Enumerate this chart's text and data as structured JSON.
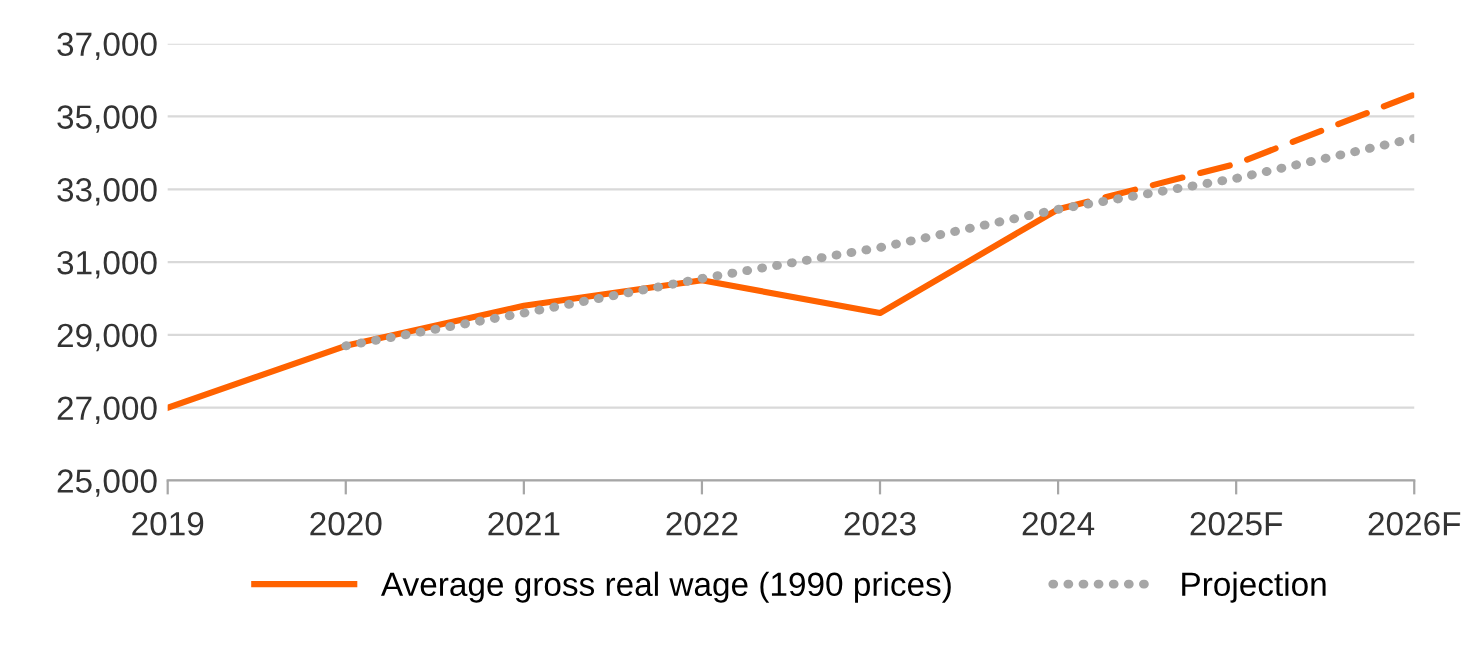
{
  "chart_data": {
    "type": "line",
    "categories": [
      "2019",
      "2020",
      "2021",
      "2022",
      "2023",
      "2024",
      "2025F",
      "2026F"
    ],
    "series": [
      {
        "name": "Average gross real wage (1990 prices)",
        "color": "#ff6200",
        "line_style": "solid",
        "values": [
          27000,
          28700,
          29800,
          30500,
          29600,
          32450,
          null,
          null
        ]
      },
      {
        "color": "#ff6200",
        "line_style": "dashed",
        "values": [
          null,
          null,
          null,
          null,
          null,
          32450,
          33700,
          35600
        ]
      },
      {
        "name": "Projection",
        "color": "#a6a6a6",
        "line_style": "dotted",
        "values": [
          null,
          28700,
          29600,
          30550,
          31400,
          32450,
          33300,
          34400
        ]
      }
    ],
    "ylim": [
      25000,
      37000
    ],
    "yticks": [
      {
        "value": 25000,
        "label": "25,000"
      },
      {
        "value": 27000,
        "label": "27,000"
      },
      {
        "value": 29000,
        "label": "29,000"
      },
      {
        "value": 31000,
        "label": "31,000"
      },
      {
        "value": 33000,
        "label": "33,000"
      },
      {
        "value": 35000,
        "label": "35,000"
      },
      {
        "value": 37000,
        "label": "37,000"
      }
    ],
    "grid": "y",
    "legend": "bottom",
    "marker": "none"
  }
}
